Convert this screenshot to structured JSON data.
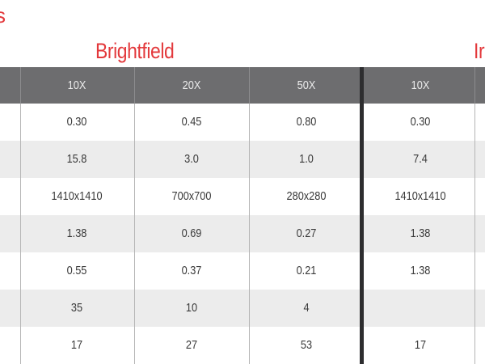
{
  "fragments": {
    "left_title_tail": "s"
  },
  "groups": {
    "brightfield": "Brightfield",
    "second_fragment": "Ir"
  },
  "header": [
    "10X",
    "20X",
    "50X",
    "10X"
  ],
  "rows": [
    [
      "0.30",
      "0.45",
      "0.80",
      "0.30"
    ],
    [
      "15.8",
      "3.0",
      "1.0",
      "7.4"
    ],
    [
      "1410x1410",
      "700x700",
      "280x280",
      "1410x1410"
    ],
    [
      "1.38",
      "0.69",
      "0.27",
      "1.38"
    ],
    [
      "0.55",
      "0.37",
      "0.21",
      "1.38"
    ],
    [
      "35",
      "10",
      "4",
      ""
    ],
    [
      "17",
      "27",
      "53",
      "17"
    ]
  ],
  "colors": {
    "accent_red": "#e3393c",
    "header_bg": "#6d6d6f",
    "alt_row": "#ececec",
    "divider": "#2d2d2f"
  }
}
